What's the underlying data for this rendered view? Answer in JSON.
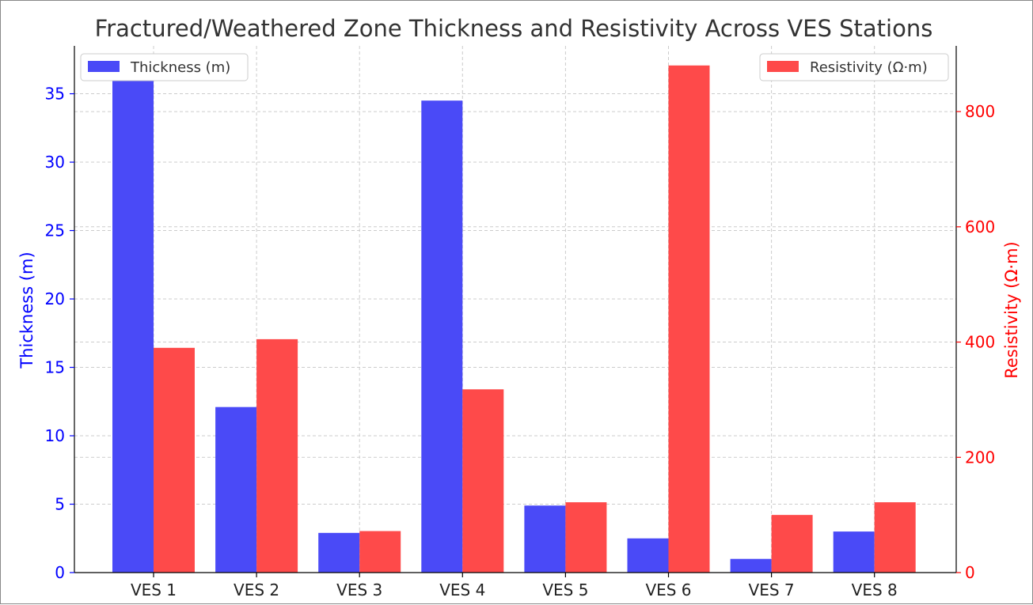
{
  "chart_data": {
    "type": "bar",
    "title": "Fractured/Weathered Zone Thickness and Resistivity Across VES Stations",
    "categories": [
      "VES 1",
      "VES 2",
      "VES 3",
      "VES 4",
      "VES 5",
      "VES 6",
      "VES 7",
      "VES 8"
    ],
    "series": [
      {
        "name": "Thickness (m)",
        "axis": "left",
        "color": "#4a4af7",
        "values": [
          37.0,
          12.1,
          2.9,
          34.5,
          4.9,
          2.5,
          1.0,
          3.0
        ]
      },
      {
        "name": "Resistivity (Ω·m)",
        "axis": "right",
        "color": "#fe4a4a",
        "values": [
          390,
          405,
          72,
          318,
          122,
          880,
          100,
          122
        ]
      }
    ],
    "ylabel_left": "Thickness (m)",
    "ylabel_right": "Resistivity (Ω·m)",
    "ylim_left": [
      0,
      38.5
    ],
    "ylim_right": [
      0,
      914
    ],
    "yticks_left": [
      0,
      5,
      10,
      15,
      20,
      25,
      30,
      35
    ],
    "yticks_right": [
      0,
      200,
      400,
      600,
      800
    ],
    "left_axis_color": "#0000ff",
    "right_axis_color": "#ff0000",
    "grid": true,
    "legend_left_placement": "top-left",
    "legend_right_placement": "top-right"
  }
}
